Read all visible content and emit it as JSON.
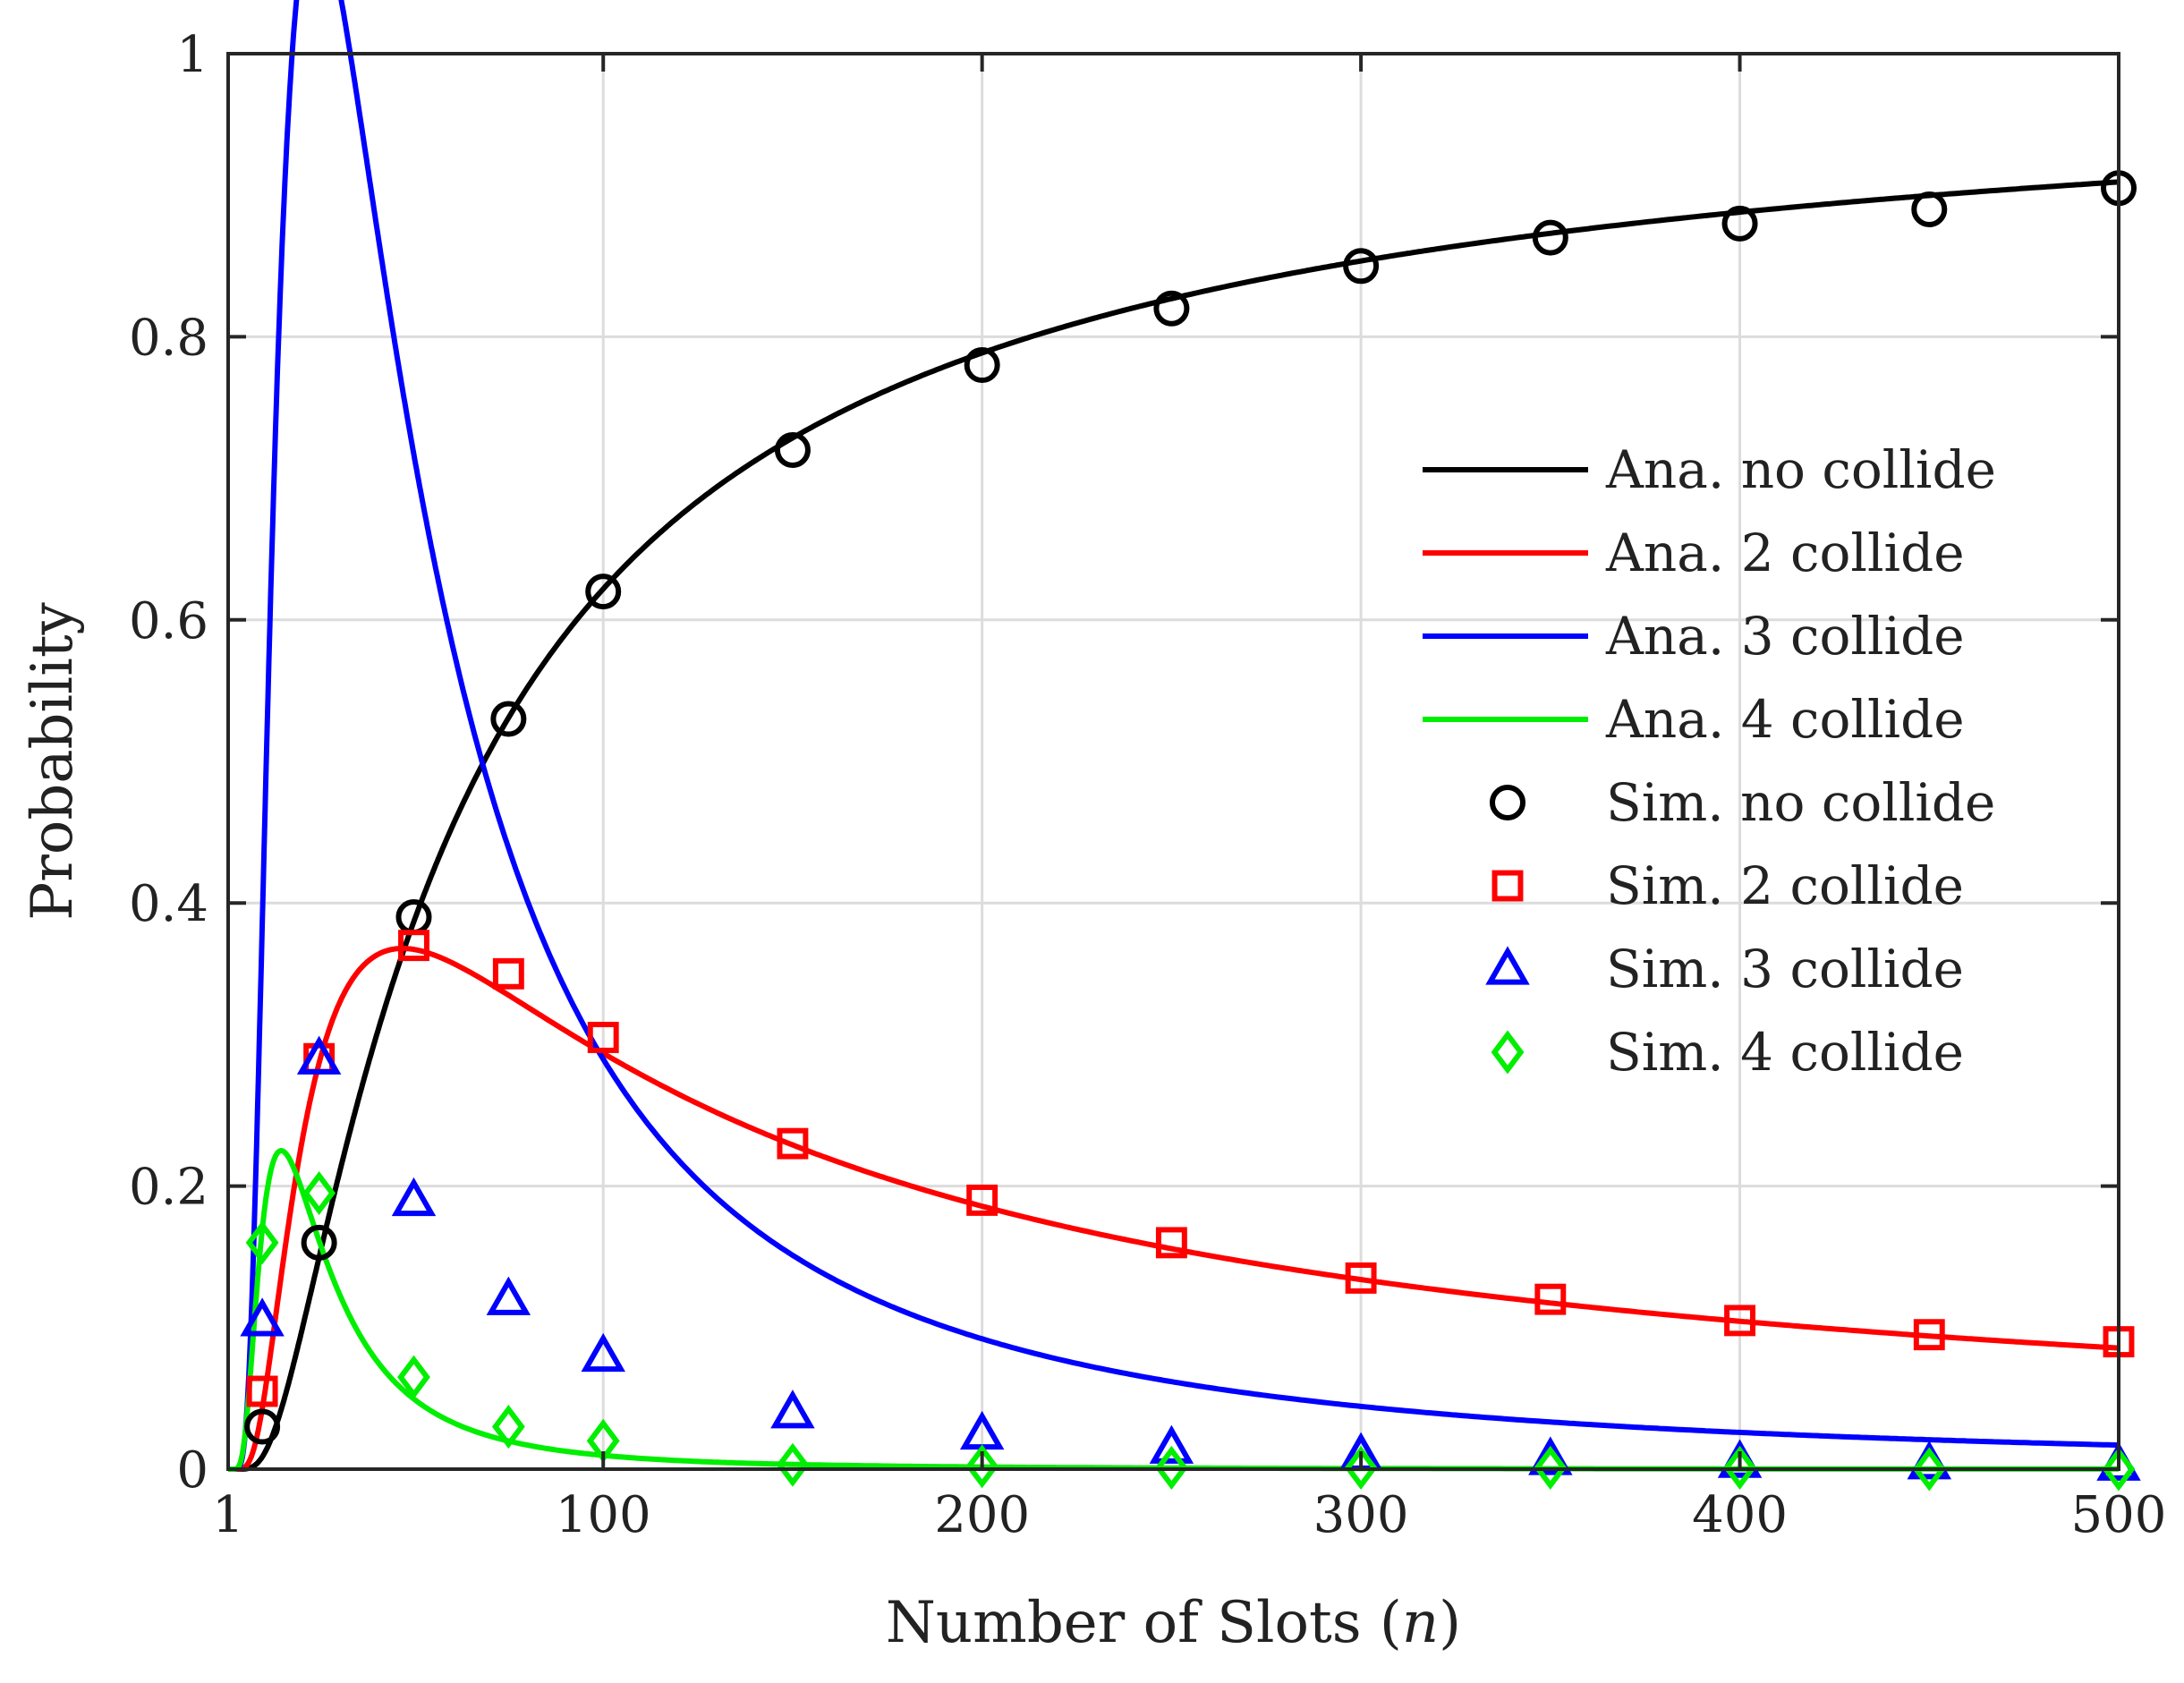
{
  "chart_data": {
    "type": "line",
    "title": "",
    "xlabel": "Number of Slots",
    "xlabel_var": "n",
    "ylabel": "Probability",
    "xlim": [
      1,
      500
    ],
    "ylim": [
      0,
      1
    ],
    "xticks": [
      1,
      100,
      200,
      300,
      400,
      500
    ],
    "xtick_labels": [
      "1",
      "100",
      "200",
      "300",
      "400",
      "500"
    ],
    "yticks": [
      0,
      0.2,
      0.4,
      0.6,
      0.8,
      1
    ],
    "ytick_labels": [
      "0",
      "0.2",
      "0.4",
      "0.6",
      "0.8",
      "1"
    ],
    "grid": true,
    "legend_position": "right",
    "sim_x": [
      10,
      25,
      50,
      75,
      100,
      150,
      200,
      250,
      300,
      350,
      400,
      450,
      500
    ],
    "series": [
      {
        "name": "Ana. no collide",
        "kind": "line",
        "color": "#000000",
        "k": 0
      },
      {
        "name": "Ana. 2 collide",
        "kind": "line",
        "color": "#ff0000",
        "k": 2
      },
      {
        "name": "Ana. 3 collide",
        "kind": "line",
        "color": "#0000ff",
        "k": 3
      },
      {
        "name": "Ana. 4 collide",
        "kind": "line",
        "color": "#00ee00",
        "k": 4
      },
      {
        "name": "Sim. no collide",
        "kind": "marker",
        "marker": "circle",
        "color": "#000000",
        "values": [
          0.03,
          0.16,
          0.39,
          0.53,
          0.62,
          0.72,
          0.78,
          0.82,
          0.85,
          0.87,
          0.88,
          0.89,
          0.905
        ]
      },
      {
        "name": "Sim. 2 collide",
        "kind": "marker",
        "marker": "square",
        "color": "#ff0000",
        "values": [
          0.055,
          0.29,
          0.37,
          0.35,
          0.305,
          0.23,
          0.19,
          0.16,
          0.135,
          0.12,
          0.105,
          0.095,
          0.09
        ]
      },
      {
        "name": "Sim. 3 collide",
        "kind": "marker",
        "marker": "triangle",
        "color": "#0000ff",
        "values": [
          0.105,
          0.29,
          0.19,
          0.12,
          0.08,
          0.04,
          0.025,
          0.015,
          0.01,
          0.007,
          0.005,
          0.004,
          0.003
        ]
      },
      {
        "name": "Sim. 4 collide",
        "kind": "marker",
        "marker": "diamond",
        "color": "#00ee00",
        "values": [
          0.16,
          0.195,
          0.065,
          0.03,
          0.02,
          0.003,
          0.002,
          0.001,
          0.001,
          0.001,
          0.001,
          0.0,
          0.0
        ]
      }
    ]
  }
}
